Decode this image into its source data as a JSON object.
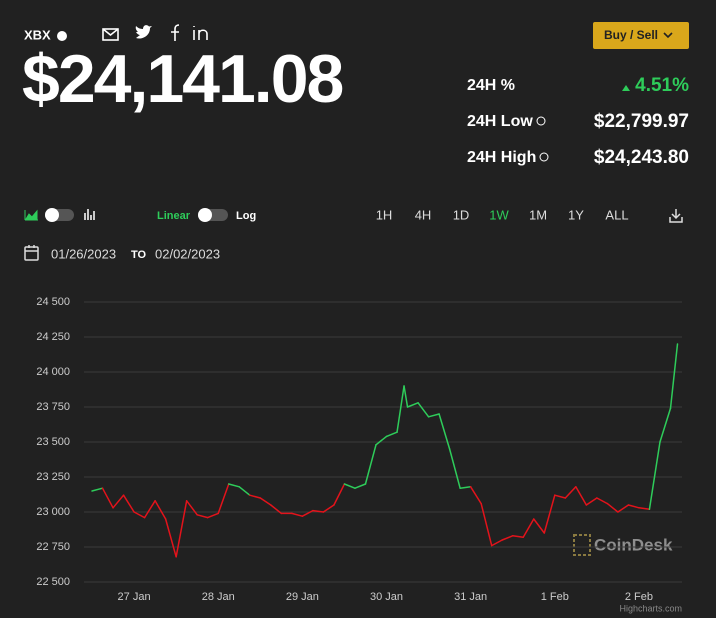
{
  "header": {
    "symbol": "XBX",
    "price": "$24,141.08",
    "buy_sell": "Buy / Sell",
    "stats": [
      {
        "label": "24H %",
        "value": "4.51%"
      },
      {
        "label": "24H Low",
        "value": "$22,799.97"
      },
      {
        "label": "24H High",
        "value": "$24,243.80"
      }
    ]
  },
  "controls": {
    "scale_options": [
      "Linear",
      "Log"
    ],
    "ranges": [
      "1H",
      "4H",
      "1D",
      "1W",
      "1M",
      "1Y",
      "ALL"
    ],
    "active_range": "1W",
    "date_from": "01/26/2023",
    "date_to_label": "TO",
    "date_to": "02/02/2023"
  },
  "chart_data": {
    "type": "line",
    "x": [
      "2023-01-26T12:00",
      "2023-01-26T15:00",
      "2023-01-26T18:00",
      "2023-01-26T21:00",
      "2023-01-27T00:00",
      "2023-01-27T03:00",
      "2023-01-27T06:00",
      "2023-01-27T09:00",
      "2023-01-27T12:00",
      "2023-01-27T15:00",
      "2023-01-27T18:00",
      "2023-01-27T21:00",
      "2023-01-28T00:00",
      "2023-01-28T03:00",
      "2023-01-28T06:00",
      "2023-01-28T09:00",
      "2023-01-28T12:00",
      "2023-01-28T15:00",
      "2023-01-28T18:00",
      "2023-01-28T21:00",
      "2023-01-29T00:00",
      "2023-01-29T03:00",
      "2023-01-29T06:00",
      "2023-01-29T09:00",
      "2023-01-29T12:00",
      "2023-01-29T15:00",
      "2023-01-29T18:00",
      "2023-01-29T21:00",
      "2023-01-30T00:00",
      "2023-01-30T03:00",
      "2023-01-30T05:00",
      "2023-01-30T06:00",
      "2023-01-30T09:00",
      "2023-01-30T12:00",
      "2023-01-30T15:00",
      "2023-01-30T18:00",
      "2023-01-30T21:00",
      "2023-01-31T00:00",
      "2023-01-31T03:00",
      "2023-01-31T06:00",
      "2023-01-31T09:00",
      "2023-01-31T12:00",
      "2023-01-31T15:00",
      "2023-01-31T18:00",
      "2023-01-31T21:00",
      "2023-02-01T00:00",
      "2023-02-01T03:00",
      "2023-02-01T06:00",
      "2023-02-01T09:00",
      "2023-02-01T12:00",
      "2023-02-01T15:00",
      "2023-02-01T18:00",
      "2023-02-01T21:00",
      "2023-02-02T00:00",
      "2023-02-02T03:00",
      "2023-02-02T06:00",
      "2023-02-02T09:00",
      "2023-02-02T11:00"
    ],
    "values": [
      23150,
      23170,
      23030,
      23120,
      23000,
      22960,
      23080,
      22950,
      22680,
      23080,
      22980,
      22960,
      22990,
      23200,
      23180,
      23120,
      23100,
      23050,
      22990,
      22990,
      22970,
      23010,
      23000,
      23050,
      23200,
      23170,
      23200,
      23480,
      23540,
      23570,
      23900,
      23750,
      23780,
      23680,
      23700,
      23450,
      23170,
      23180,
      23060,
      22760,
      22800,
      22830,
      22820,
      22950,
      22850,
      23120,
      23100,
      23180,
      23050,
      23100,
      23060,
      23000,
      23050,
      23030,
      23020,
      23500,
      23740,
      24200
    ],
    "up_color": "#2ecc5a",
    "down_color": "#e3131b",
    "xlim": [
      "2023-01-26T09:43",
      "2023-02-02T12:17"
    ],
    "xticks": [
      {
        "value": "2023-01-27T00:00",
        "label": "27 Jan"
      },
      {
        "value": "2023-01-28T00:00",
        "label": "28 Jan"
      },
      {
        "value": "2023-01-29T00:00",
        "label": "29 Jan"
      },
      {
        "value": "2023-01-30T00:00",
        "label": "30 Jan"
      },
      {
        "value": "2023-01-31T00:00",
        "label": "31 Jan"
      },
      {
        "value": "2023-02-01T00:00",
        "label": "1 Feb"
      },
      {
        "value": "2023-02-02T00:00",
        "label": "2 Feb"
      }
    ],
    "ylim": [
      22500,
      24500
    ],
    "yticks": [
      {
        "value": 22500,
        "label": "22 500"
      },
      {
        "value": 22750,
        "label": "22 750"
      },
      {
        "value": 23000,
        "label": "23 000"
      },
      {
        "value": 23250,
        "label": "23 250"
      },
      {
        "value": 23500,
        "label": "23 500"
      },
      {
        "value": 23750,
        "label": "23 750"
      },
      {
        "value": 24000,
        "label": "24 000"
      },
      {
        "value": 24250,
        "label": "24 250"
      },
      {
        "value": 24500,
        "label": "24 500"
      }
    ],
    "grid": true,
    "watermark": "CoinDesk",
    "credits": "Highcharts.com"
  }
}
